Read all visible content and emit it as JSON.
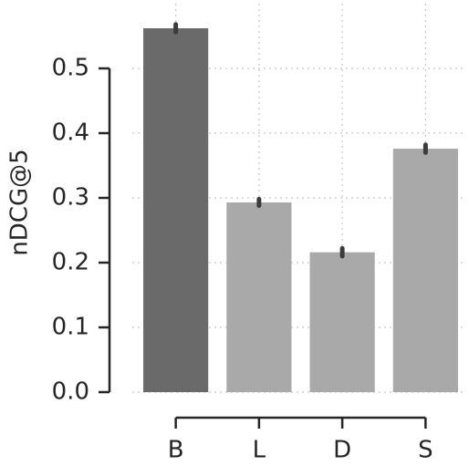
{
  "chart_data": {
    "type": "bar",
    "ylabel": "nDCG@5",
    "categories": [
      "B",
      "L",
      "D",
      "S"
    ],
    "values": [
      0.562,
      0.293,
      0.216,
      0.376
    ],
    "errors": [
      0.006,
      0.005,
      0.006,
      0.006
    ],
    "colors": [
      "#6a6a6a",
      "#a9a9a9",
      "#a9a9a9",
      "#a9a9a9"
    ],
    "ylim": [
      0,
      0.6
    ],
    "yticks": [
      {
        "value": 0,
        "label": "0.0"
      },
      0.1,
      0.2,
      0.3,
      0.4,
      0.5
    ],
    "grid": true
  }
}
